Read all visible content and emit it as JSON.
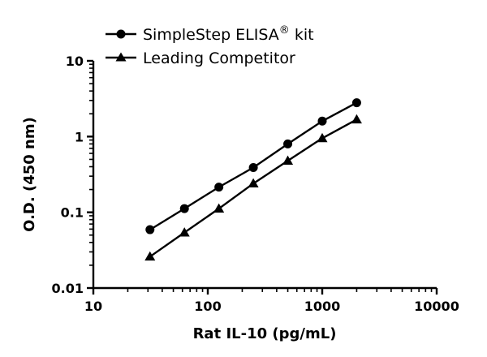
{
  "chart_data": {
    "type": "line",
    "xscale": "log",
    "yscale": "log",
    "xlabel": "Rat IL-10 (pg/mL)",
    "ylabel": "O.D. (450 nm)",
    "xlim": [
      10,
      10000
    ],
    "ylim": [
      0.01,
      10
    ],
    "xticks": [
      "10",
      "100",
      "1000",
      "10000"
    ],
    "yticks": [
      "0.01",
      "0.1",
      "1",
      "10"
    ],
    "grid": false,
    "legend_position": "top-center",
    "series": [
      {
        "name": "SimpleStep ELISA",
        "name_superscript": "®",
        "name_suffix": " kit",
        "marker": "circle",
        "color": "#000000",
        "x": [
          31.25,
          62.5,
          125,
          250,
          500,
          1000,
          2000
        ],
        "y": [
          0.059,
          0.112,
          0.215,
          0.39,
          0.8,
          1.6,
          2.8
        ]
      },
      {
        "name": "Leading Competitor",
        "marker": "triangle",
        "color": "#000000",
        "x": [
          31.25,
          62.5,
          125,
          250,
          500,
          1000,
          2000
        ],
        "y": [
          0.026,
          0.054,
          0.112,
          0.24,
          0.48,
          0.95,
          1.68
        ]
      }
    ]
  }
}
